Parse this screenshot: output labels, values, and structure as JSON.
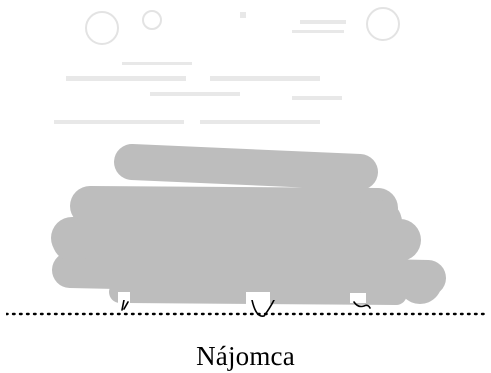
{
  "document": {
    "signature_role_label": "Nájomca"
  },
  "signature_block": {
    "line_style": "dotted",
    "redaction_color": "#bdbdbd",
    "ink_color": "#000000",
    "stamp_ghost_color": "#d6d6d6"
  },
  "icons": {
    "stamp": "faded-stamp-icon",
    "signature": "handwritten-signature-icon"
  }
}
